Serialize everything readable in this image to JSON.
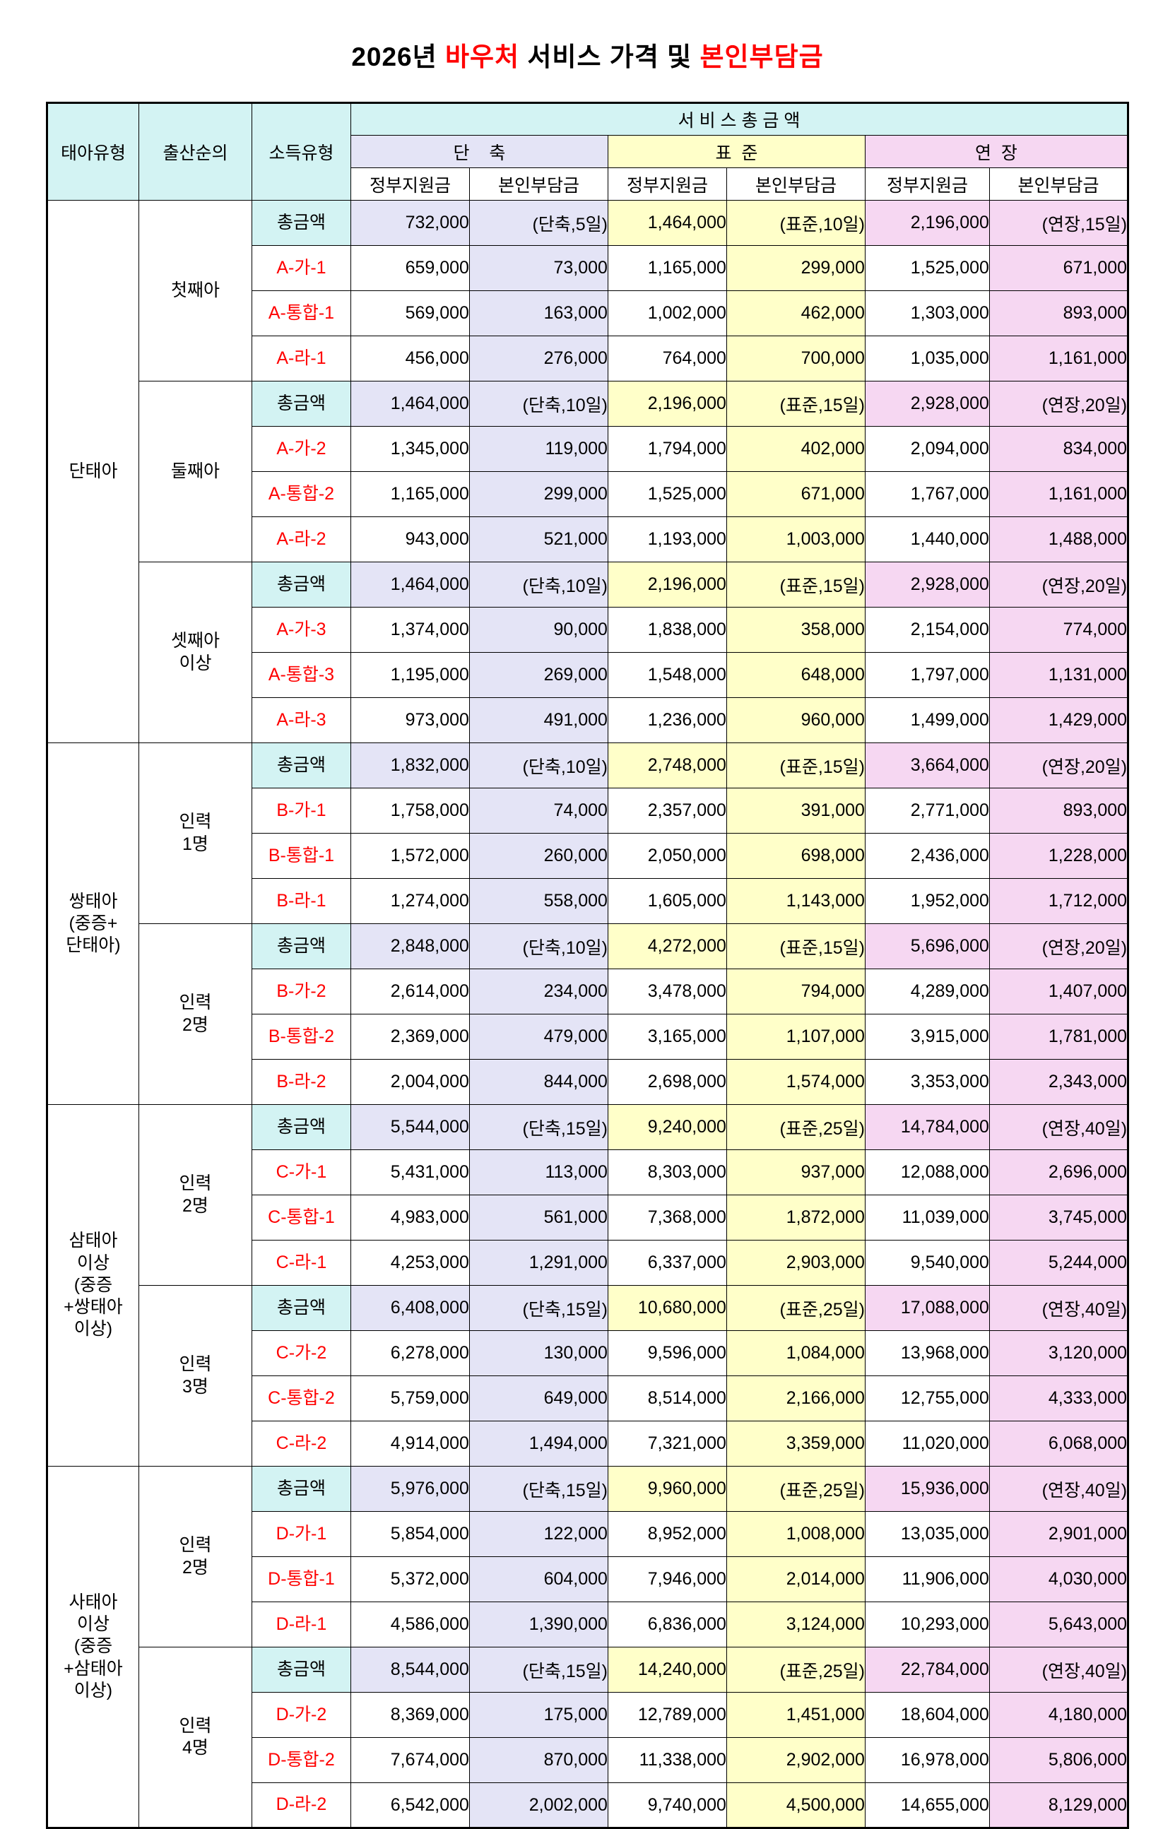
{
  "title": {
    "p1": "2026년 ",
    "r1": "바우처",
    "p2": " 서비스 가격 및 ",
    "r2": "본인부담금"
  },
  "columns": {
    "fetus": "태아유형",
    "order": "출산순의",
    "income": "소득유형",
    "service_total": "서 비 스 총 금 액",
    "short": "단    축",
    "standard": "표  준",
    "extended": "연  장",
    "gov": "정부지원금",
    "self": "본인부담금"
  },
  "groups": [
    {
      "fetus": "단태아",
      "subgroups": [
        {
          "order": "첫째아",
          "rows": [
            {
              "label": "총금액",
              "total": true,
              "cells": [
                "732,000",
                "(단축,5일)",
                "1,464,000",
                "(표준,10일)",
                "2,196,000",
                "(연장,15일)"
              ]
            },
            {
              "label": "A-가-1",
              "total": false,
              "cells": [
                "659,000",
                "73,000",
                "1,165,000",
                "299,000",
                "1,525,000",
                "671,000"
              ]
            },
            {
              "label": "A-통합-1",
              "total": false,
              "cells": [
                "569,000",
                "163,000",
                "1,002,000",
                "462,000",
                "1,303,000",
                "893,000"
              ]
            },
            {
              "label": "A-라-1",
              "total": false,
              "cells": [
                "456,000",
                "276,000",
                "764,000",
                "700,000",
                "1,035,000",
                "1,161,000"
              ]
            }
          ]
        },
        {
          "order": "둘째아",
          "rows": [
            {
              "label": "총금액",
              "total": true,
              "cells": [
                "1,464,000",
                "(단축,10일)",
                "2,196,000",
                "(표준,15일)",
                "2,928,000",
                "(연장,20일)"
              ]
            },
            {
              "label": "A-가-2",
              "total": false,
              "cells": [
                "1,345,000",
                "119,000",
                "1,794,000",
                "402,000",
                "2,094,000",
                "834,000"
              ]
            },
            {
              "label": "A-통합-2",
              "total": false,
              "cells": [
                "1,165,000",
                "299,000",
                "1,525,000",
                "671,000",
                "1,767,000",
                "1,161,000"
              ]
            },
            {
              "label": "A-라-2",
              "total": false,
              "cells": [
                "943,000",
                "521,000",
                "1,193,000",
                "1,003,000",
                "1,440,000",
                "1,488,000"
              ]
            }
          ]
        },
        {
          "order": "셋째아\n이상",
          "rows": [
            {
              "label": "총금액",
              "total": true,
              "cells": [
                "1,464,000",
                "(단축,10일)",
                "2,196,000",
                "(표준,15일)",
                "2,928,000",
                "(연장,20일)"
              ]
            },
            {
              "label": "A-가-3",
              "total": false,
              "cells": [
                "1,374,000",
                "90,000",
                "1,838,000",
                "358,000",
                "2,154,000",
                "774,000"
              ]
            },
            {
              "label": "A-통합-3",
              "total": false,
              "cells": [
                "1,195,000",
                "269,000",
                "1,548,000",
                "648,000",
                "1,797,000",
                "1,131,000"
              ]
            },
            {
              "label": "A-라-3",
              "total": false,
              "cells": [
                "973,000",
                "491,000",
                "1,236,000",
                "960,000",
                "1,499,000",
                "1,429,000"
              ]
            }
          ]
        }
      ]
    },
    {
      "fetus": "쌍태아\n(중증+\n단태아)",
      "subgroups": [
        {
          "order": "인력\n1명",
          "rows": [
            {
              "label": "총금액",
              "total": true,
              "cells": [
                "1,832,000",
                "(단축,10일)",
                "2,748,000",
                "(표준,15일)",
                "3,664,000",
                "(연장,20일)"
              ]
            },
            {
              "label": "B-가-1",
              "total": false,
              "cells": [
                "1,758,000",
                "74,000",
                "2,357,000",
                "391,000",
                "2,771,000",
                "893,000"
              ]
            },
            {
              "label": "B-통합-1",
              "total": false,
              "cells": [
                "1,572,000",
                "260,000",
                "2,050,000",
                "698,000",
                "2,436,000",
                "1,228,000"
              ]
            },
            {
              "label": "B-라-1",
              "total": false,
              "cells": [
                "1,274,000",
                "558,000",
                "1,605,000",
                "1,143,000",
                "1,952,000",
                "1,712,000"
              ]
            }
          ]
        },
        {
          "order": "인력\n2명",
          "rows": [
            {
              "label": "총금액",
              "total": true,
              "cells": [
                "2,848,000",
                "(단축,10일)",
                "4,272,000",
                "(표준,15일)",
                "5,696,000",
                "(연장,20일)"
              ]
            },
            {
              "label": "B-가-2",
              "total": false,
              "cells": [
                "2,614,000",
                "234,000",
                "3,478,000",
                "794,000",
                "4,289,000",
                "1,407,000"
              ]
            },
            {
              "label": "B-통합-2",
              "total": false,
              "cells": [
                "2,369,000",
                "479,000",
                "3,165,000",
                "1,107,000",
                "3,915,000",
                "1,781,000"
              ]
            },
            {
              "label": "B-라-2",
              "total": false,
              "cells": [
                "2,004,000",
                "844,000",
                "2,698,000",
                "1,574,000",
                "3,353,000",
                "2,343,000"
              ]
            }
          ]
        }
      ]
    },
    {
      "fetus": "삼태아\n이상\n(중증\n+쌍태아\n이상)",
      "subgroups": [
        {
          "order": "인력\n2명",
          "rows": [
            {
              "label": "총금액",
              "total": true,
              "cells": [
                "5,544,000",
                "(단축,15일)",
                "9,240,000",
                "(표준,25일)",
                "14,784,000",
                "(연장,40일)"
              ]
            },
            {
              "label": "C-가-1",
              "total": false,
              "cells": [
                "5,431,000",
                "113,000",
                "8,303,000",
                "937,000",
                "12,088,000",
                "2,696,000"
              ]
            },
            {
              "label": "C-통합-1",
              "total": false,
              "cells": [
                "4,983,000",
                "561,000",
                "7,368,000",
                "1,872,000",
                "11,039,000",
                "3,745,000"
              ]
            },
            {
              "label": "C-라-1",
              "total": false,
              "cells": [
                "4,253,000",
                "1,291,000",
                "6,337,000",
                "2,903,000",
                "9,540,000",
                "5,244,000"
              ]
            }
          ]
        },
        {
          "order": "인력\n3명",
          "rows": [
            {
              "label": "총금액",
              "total": true,
              "cells": [
                "6,408,000",
                "(단축,15일)",
                "10,680,000",
                "(표준,25일)",
                "17,088,000",
                "(연장,40일)"
              ]
            },
            {
              "label": "C-가-2",
              "total": false,
              "cells": [
                "6,278,000",
                "130,000",
                "9,596,000",
                "1,084,000",
                "13,968,000",
                "3,120,000"
              ]
            },
            {
              "label": "C-통합-2",
              "total": false,
              "cells": [
                "5,759,000",
                "649,000",
                "8,514,000",
                "2,166,000",
                "12,755,000",
                "4,333,000"
              ]
            },
            {
              "label": "C-라-2",
              "total": false,
              "cells": [
                "4,914,000",
                "1,494,000",
                "7,321,000",
                "3,359,000",
                "11,020,000",
                "6,068,000"
              ]
            }
          ]
        }
      ]
    },
    {
      "fetus": "사태아\n이상\n(중증\n+삼태아\n이상)",
      "subgroups": [
        {
          "order": "인력\n2명",
          "rows": [
            {
              "label": "총금액",
              "total": true,
              "cells": [
                "5,976,000",
                "(단축,15일)",
                "9,960,000",
                "(표준,25일)",
                "15,936,000",
                "(연장,40일)"
              ]
            },
            {
              "label": "D-가-1",
              "total": false,
              "cells": [
                "5,854,000",
                "122,000",
                "8,952,000",
                "1,008,000",
                "13,035,000",
                "2,901,000"
              ]
            },
            {
              "label": "D-통합-1",
              "total": false,
              "cells": [
                "5,372,000",
                "604,000",
                "7,946,000",
                "2,014,000",
                "11,906,000",
                "4,030,000"
              ]
            },
            {
              "label": "D-라-1",
              "total": false,
              "cells": [
                "4,586,000",
                "1,390,000",
                "6,836,000",
                "3,124,000",
                "10,293,000",
                "5,643,000"
              ]
            }
          ]
        },
        {
          "order": "인력\n4명",
          "rows": [
            {
              "label": "총금액",
              "total": true,
              "cells": [
                "8,544,000",
                "(단축,15일)",
                "14,240,000",
                "(표준,25일)",
                "22,784,000",
                "(연장,40일)"
              ]
            },
            {
              "label": "D-가-2",
              "total": false,
              "cells": [
                "8,369,000",
                "175,000",
                "12,789,000",
                "1,451,000",
                "18,604,000",
                "4,180,000"
              ]
            },
            {
              "label": "D-통합-2",
              "total": false,
              "cells": [
                "7,674,000",
                "870,000",
                "11,338,000",
                "2,902,000",
                "16,978,000",
                "5,806,000"
              ]
            },
            {
              "label": "D-라-2",
              "total": false,
              "cells": [
                "6,542,000",
                "2,002,000",
                "9,740,000",
                "4,500,000",
                "14,655,000",
                "8,129,000"
              ]
            }
          ]
        }
      ]
    }
  ]
}
